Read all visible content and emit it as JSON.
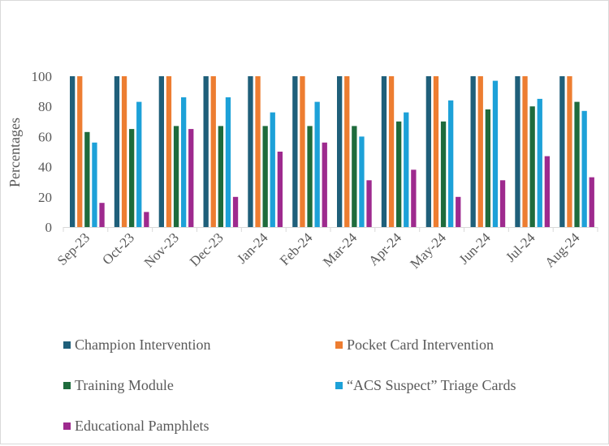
{
  "chart_data": {
    "type": "bar",
    "title": "",
    "xlabel": "",
    "ylabel": "Percentages",
    "ylim": [
      0,
      100
    ],
    "yticks": [
      0,
      20,
      40,
      60,
      80,
      100
    ],
    "grid": false,
    "legend_position": "bottom",
    "categories": [
      "Sep-23",
      "Oct-23",
      "Nov-23",
      "Dec-23",
      "Jan-24",
      "Feb-24",
      "Mar-24",
      "Apr-24",
      "May-24",
      "Jun-24",
      "Jul-24",
      "Aug-24"
    ],
    "series": [
      {
        "name": "Champion Intervention",
        "color": "#1f5f7a",
        "values": [
          100,
          100,
          100,
          100,
          100,
          100,
          100,
          100,
          100,
          100,
          100,
          100
        ]
      },
      {
        "name": "Pocket Card Intervention",
        "color": "#ed7d31",
        "values": [
          100,
          100,
          100,
          100,
          100,
          100,
          100,
          100,
          100,
          100,
          100,
          100
        ]
      },
      {
        "name": " Training Module",
        "color": "#1e6b3c",
        "values": [
          63,
          65,
          67,
          67,
          67,
          67,
          67,
          70,
          70,
          78,
          80,
          83
        ]
      },
      {
        "name": "“ACS Suspect” Triage Cards",
        "color": "#1da1d8",
        "values": [
          56,
          83,
          86,
          86,
          76,
          83,
          60,
          76,
          84,
          97,
          85,
          77
        ]
      },
      {
        "name": "Educational Pamphlets",
        "color": "#9e2a8e",
        "values": [
          16,
          10,
          65,
          20,
          50,
          56,
          31,
          38,
          20,
          31,
          47,
          33
        ]
      }
    ]
  }
}
